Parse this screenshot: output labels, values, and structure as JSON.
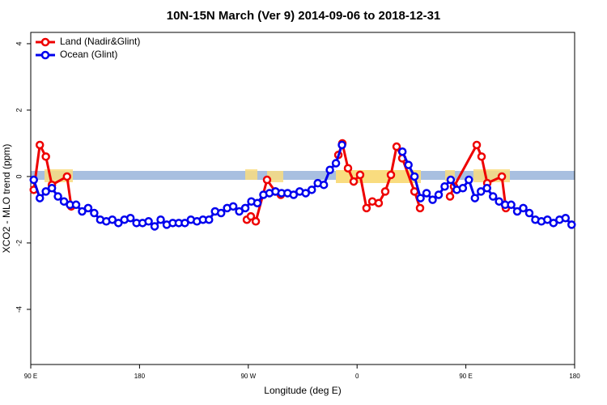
{
  "chart_data": {
    "type": "line",
    "title": "10N-15N March (Ver 9)   2014-09-06 to 2018-12-31",
    "xlabel": "Longitude (deg E)",
    "ylabel": "XCO2 - MLO trend (ppm)",
    "xlim": [
      90,
      540
    ],
    "ylim": [
      -5.66,
      4.34
    ],
    "xticks": [
      {
        "value": 90,
        "label": "90 E"
      },
      180,
      {
        "value": 270,
        "label": "90 W"
      },
      {
        "value": 360,
        "label": "0"
      },
      {
        "value": 450,
        "label": "90 E"
      },
      {
        "value": 540,
        "label": "180"
      }
    ],
    "yticks": [
      -4,
      -2,
      0,
      2,
      4
    ],
    "legend": "top-left",
    "series": [
      {
        "name": "Land (Nadir&Glint)",
        "color": "#ee0000",
        "x": [
          92.5,
          97.5,
          102.5,
          107.5,
          120,
          123.5,
          null,
          268.8,
          272.1,
          276.2,
          285.5,
          292.3,
          296.9,
          null,
          344.5,
          347.8,
          352.5,
          357.2,
          362.5,
          367.8,
          372.6,
          377.9,
          383.3,
          388,
          392.7,
          397.4,
          407.5,
          412.1,
          null,
          436.9,
          440.2,
          459,
          463,
          467.7,
          479.8,
          483.1
        ],
        "values": [
          -0.4,
          0.95,
          0.6,
          -0.25,
          0.0,
          -0.9,
          null,
          -1.3,
          -1.2,
          -1.35,
          -0.1,
          -0.45,
          -0.55,
          null,
          0.65,
          1.0,
          0.25,
          -0.15,
          0.05,
          -0.95,
          -0.75,
          -0.8,
          -0.45,
          0.05,
          0.9,
          0.55,
          -0.45,
          -0.95,
          null,
          -0.6,
          -0.3,
          0.95,
          0.6,
          -0.2,
          0.0,
          -0.95
        ]
      },
      {
        "name": "Ocean (Glint)",
        "color": "#0000ee",
        "x": [
          92.5,
          97.5,
          102.5,
          107.5,
          112.5,
          117.5,
          122.5,
          127.5,
          132.5,
          137.5,
          142.5,
          147.5,
          152.5,
          157.5,
          162.5,
          167.5,
          172.5,
          177.5,
          182.5,
          187.5,
          192.5,
          197.5,
          202.5,
          207.5,
          212.5,
          217.5,
          222.5,
          227.5,
          232.5,
          237.5,
          242.5,
          247.5,
          252.5,
          257.5,
          262.5,
          267.5,
          272.5,
          277.5,
          282.5,
          287.5,
          292.5,
          297.5,
          302.5,
          307.5,
          312.5,
          317.5,
          322.5,
          327.5,
          332.5,
          337.5,
          342.5,
          347.5,
          null,
          397.5,
          402.5,
          407.5,
          412.5,
          417.5,
          422.5,
          427.5,
          432.5,
          437.5,
          442.5,
          447.5,
          452.5,
          457.5,
          462.5,
          467.5,
          472.5,
          477.5,
          482.5,
          487.5,
          492.5,
          497.5,
          502.5,
          507.5,
          512.5,
          517.5,
          522.5,
          527.5,
          532.5,
          537.5
        ],
        "values": [
          -0.1,
          -0.65,
          -0.45,
          -0.35,
          -0.6,
          -0.75,
          -0.85,
          -0.85,
          -1.05,
          -0.95,
          -1.1,
          -1.3,
          -1.35,
          -1.3,
          -1.4,
          -1.3,
          -1.25,
          -1.4,
          -1.4,
          -1.35,
          -1.5,
          -1.3,
          -1.45,
          -1.4,
          -1.4,
          -1.4,
          -1.3,
          -1.35,
          -1.3,
          -1.3,
          -1.05,
          -1.1,
          -0.95,
          -0.9,
          -1.05,
          -0.95,
          -0.75,
          -0.8,
          -0.55,
          -0.5,
          -0.45,
          -0.5,
          -0.5,
          -0.55,
          -0.45,
          -0.5,
          -0.4,
          -0.2,
          -0.25,
          0.2,
          0.4,
          0.95,
          null,
          0.75,
          0.35,
          0.0,
          -0.65,
          -0.5,
          -0.7,
          -0.55,
          -0.3,
          -0.1,
          -0.4,
          -0.35,
          -0.1,
          -0.65,
          -0.45,
          -0.35,
          -0.6,
          -0.75,
          -0.85,
          -0.85,
          -1.05,
          -0.95,
          -1.1,
          -1.3,
          -1.35,
          -1.3,
          -1.4,
          -1.3,
          -1.25,
          -1.45
        ]
      }
    ]
  }
}
